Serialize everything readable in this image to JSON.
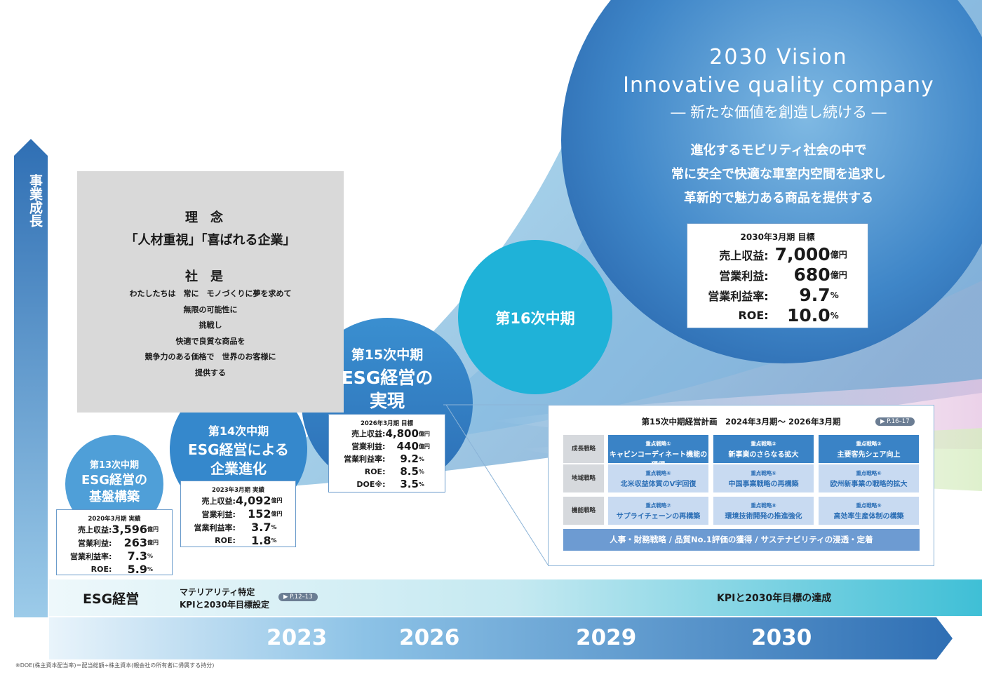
{
  "axis": {
    "label": "事業成長"
  },
  "vision": {
    "line1": "2030 Vision",
    "line2": "Innovative quality company",
    "line3": "― 新たな価値を創造し続ける ―",
    "desc": [
      "進化するモビリティ社会の中で",
      "常に安全で快適な車室内空間を追求し",
      "革新的で魅力ある商品を提供する"
    ]
  },
  "target2030": {
    "title": "2030年3月期 目標",
    "rows": [
      {
        "label": "売上収益:",
        "value": "7,000",
        "unit": "億円"
      },
      {
        "label": "営業利益:",
        "value": "680",
        "unit": "億円"
      },
      {
        "label": "営業利益率:",
        "value": "9.7",
        "unit": "%"
      },
      {
        "label": "ROE:",
        "value": "10.0",
        "unit": "%"
      }
    ]
  },
  "philosophy": {
    "heading": "理念",
    "quote": "「人材重視」「喜ばれる企業」",
    "heading2": "社是",
    "lines": [
      "わたしたちは　常に　モノづくりに夢を求めて",
      "無限の可能性に",
      "挑戦し",
      "快適で良質な商品を",
      "競争力のある価格で　世界のお客様に",
      "提供する"
    ]
  },
  "phases": {
    "p13": {
      "title": "第13次中期",
      "body": [
        "ESG経営の",
        "基盤構築"
      ]
    },
    "p14": {
      "title": "第14次中期",
      "body": [
        "ESG経営による",
        "企業進化"
      ]
    },
    "p15": {
      "title": "第15次中期",
      "body": [
        "ESG経営の",
        "実現"
      ]
    },
    "p16": {
      "title": "第16次中期"
    }
  },
  "result2020": {
    "title": "2020年3月期 実績",
    "rows": [
      {
        "label": "売上収益:",
        "value": "3,596",
        "unit": "億円"
      },
      {
        "label": "営業利益:",
        "value": "263",
        "unit": "億円"
      },
      {
        "label": "営業利益率:",
        "value": "7.3",
        "unit": "%"
      },
      {
        "label": "ROE:",
        "value": "5.9",
        "unit": "%"
      }
    ]
  },
  "result2023": {
    "title": "2023年3月期 実績",
    "rows": [
      {
        "label": "売上収益:",
        "value": "4,092",
        "unit": "億円"
      },
      {
        "label": "営業利益:",
        "value": "152",
        "unit": "億円"
      },
      {
        "label": "営業利益率:",
        "value": "3.7",
        "unit": "%"
      },
      {
        "label": "ROE:",
        "value": "1.8",
        "unit": "%"
      }
    ]
  },
  "target2026": {
    "title": "2026年3月期 目標",
    "rows": [
      {
        "label": "売上収益:",
        "value": "4,800",
        "unit": "億円"
      },
      {
        "label": "営業利益:",
        "value": "440",
        "unit": "億円"
      },
      {
        "label": "営業利益率:",
        "value": "9.2",
        "unit": "%"
      },
      {
        "label": "ROE:",
        "value": "8.5",
        "unit": "%"
      },
      {
        "label": "DOE※:",
        "value": "3.5",
        "unit": "%"
      }
    ]
  },
  "plan": {
    "title": "第15次中期経営計画　2024年3月期～ 2026年3月期",
    "ref": "▶ P.16–17",
    "rows": [
      {
        "label": "成長戦略",
        "cells": [
          {
            "sub": "重点戦略①",
            "name": "キャビンコーディネート機能の獲得"
          },
          {
            "sub": "重点戦略②",
            "name": "新事業のさらなる拡大"
          },
          {
            "sub": "重点戦略③",
            "name": "主要客先シェア向上"
          }
        ]
      },
      {
        "label": "地域戦略",
        "cells": [
          {
            "sub": "重点戦略④",
            "name": "北米収益体質のV字回復"
          },
          {
            "sub": "重点戦略⑤",
            "name": "中国事業戦略の再構築"
          },
          {
            "sub": "重点戦略⑥",
            "name": "欧州新事業の戦略的拡大"
          }
        ]
      },
      {
        "label": "機能戦略",
        "cells": [
          {
            "sub": "重点戦略⑦",
            "name": "サプライチェーンの再構築"
          },
          {
            "sub": "重点戦略⑧",
            "name": "環境技術開発の推進強化"
          },
          {
            "sub": "重点戦略⑨",
            "name": "高効率生産体制の構築"
          }
        ]
      }
    ],
    "footer": "人事・財務戦略 / 品質No.1評価の獲得 / サステナビリティの浸透・定着"
  },
  "esg": {
    "label": "ESG経営",
    "materiality": [
      "マテリアリティ特定",
      "KPIと2030年目標設定"
    ],
    "ref": "▶ P.12–13",
    "achieve": "KPIと2030年目標の達成"
  },
  "years": [
    "2023",
    "2026",
    "2029",
    "2030"
  ],
  "footnote": "※DOE(株主資本配当率)＝配当総額÷株主資本(親会社の所有者に帰属する持分)",
  "colors": {
    "primary_blue": "#3a83c6",
    "deep_blue": "#2f6fb4",
    "cyan": "#3fbfd6",
    "gray_box": "#d9d9d9"
  }
}
